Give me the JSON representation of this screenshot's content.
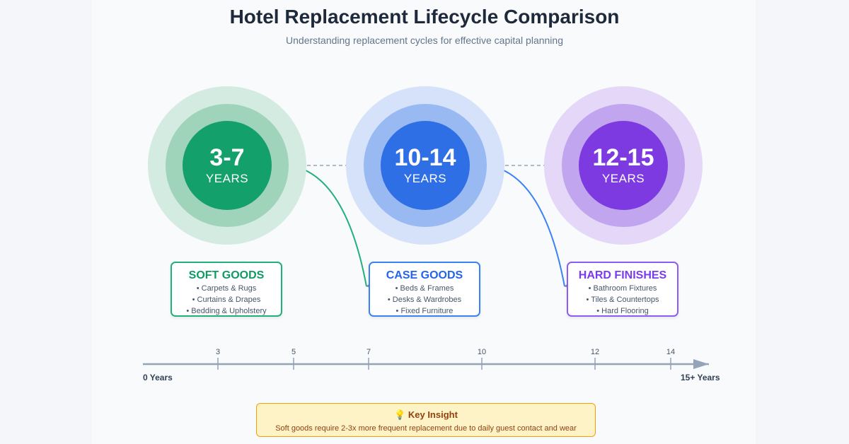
{
  "title": "Hotel Replacement Lifecycle Comparison",
  "subtitle": "Understanding replacement cycles for effective capital planning",
  "categories": [
    {
      "range": "3-7",
      "unit": "YEARS",
      "name": "SOFT GOODS",
      "items": [
        "• Carpets & Rugs",
        "• Curtains & Drapes",
        "• Bedding & Upholstery"
      ],
      "color": "#10a36a"
    },
    {
      "range": "10-14",
      "unit": "YEARS",
      "name": "CASE GOODS",
      "items": [
        "• Beds & Frames",
        "• Desks & Wardrobes",
        "• Fixed Furniture"
      ],
      "color": "#3b7ee8"
    },
    {
      "range": "12-15",
      "unit": "YEARS",
      "name": "HARD FINISHES",
      "items": [
        "• Bathroom Fixtures",
        "• Tiles & Countertops",
        "• Hard Flooring"
      ],
      "color": "#8b4be0"
    }
  ],
  "timeline": {
    "start_label": "0 Years",
    "end_label": "15+ Years",
    "ticks": [
      "3",
      "5",
      "7",
      "10",
      "12",
      "14"
    ]
  },
  "insight": {
    "title": "💡 Key Insight",
    "body": "Soft goods require 2-3x more frequent replacement due to daily guest contact and wear"
  }
}
